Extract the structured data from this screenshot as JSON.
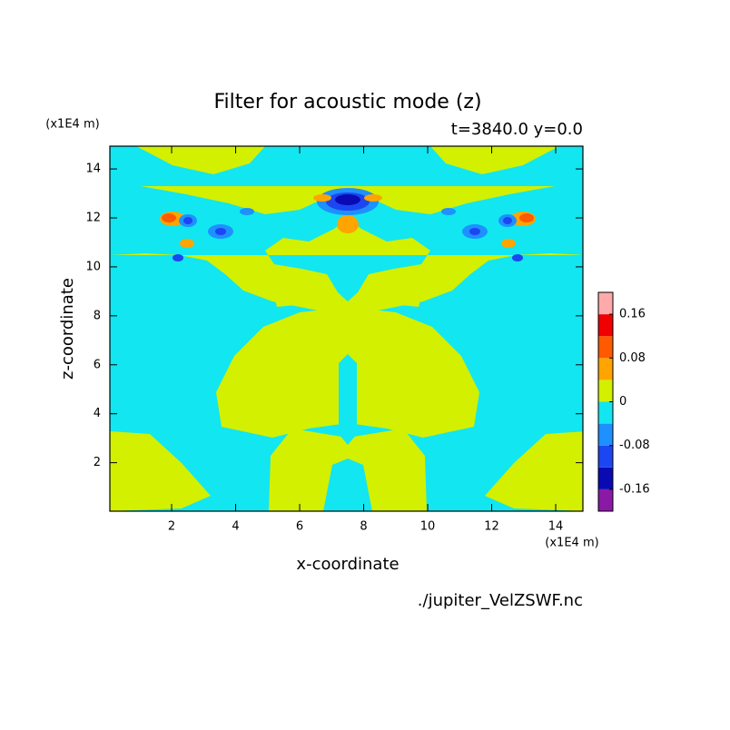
{
  "chart_data": {
    "type": "contour",
    "title": "Filter for acoustic mode (z)",
    "subtitle": "t=3840.0 y=0.0",
    "x_label": "x-coordinate",
    "y_label": "z-coordinate",
    "x_unit": "(x1E4 m)",
    "y_unit": "(x1E4 m)",
    "source": "./jupiter_VelZSWF.nc",
    "xlim": [
      0.07,
      14.85
    ],
    "ylim": [
      0.02,
      14.93
    ],
    "xticks": [
      2,
      4,
      6,
      8,
      10,
      12,
      14
    ],
    "yticks": [
      2,
      4,
      6,
      8,
      10,
      12,
      14
    ],
    "colorbar": {
      "levels": [
        -0.2,
        -0.16,
        -0.12,
        -0.08,
        -0.04,
        0,
        0.04,
        0.08,
        0.12,
        0.16,
        0.2
      ],
      "colors": [
        "#8a1aa6",
        "#0a0ab4",
        "#1c46f2",
        "#1e90ff",
        "#12e6f0",
        "#d2f000",
        "#ffa400",
        "#ff5a00",
        "#f00000",
        "#ffaaaa"
      ],
      "ticks": [
        -0.16,
        -0.08,
        0,
        0.08,
        0.16
      ]
    }
  }
}
